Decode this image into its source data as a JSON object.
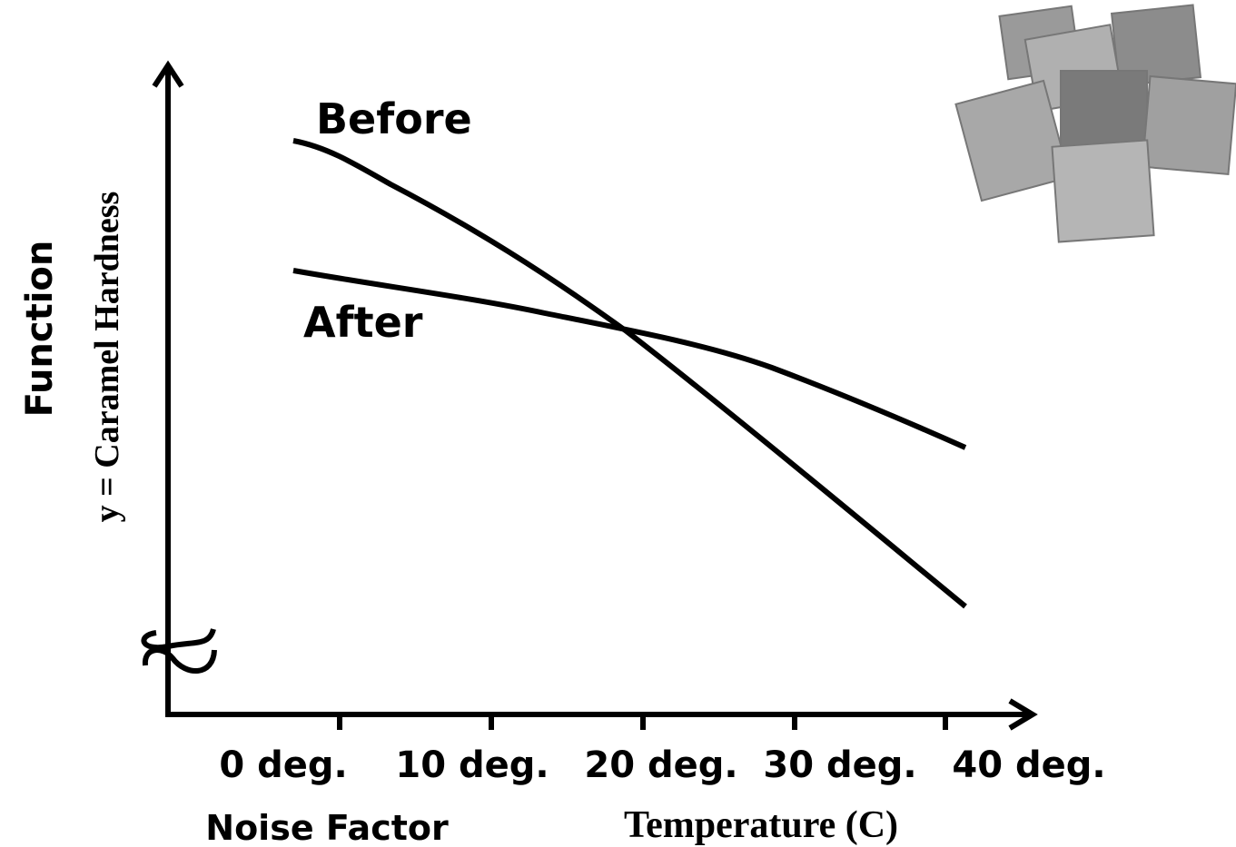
{
  "curves": {
    "before": "Before",
    "after": "After"
  },
  "y_axis": {
    "title": "Function",
    "subtitle": "y = Caramel Hardness"
  },
  "x_axis": {
    "ticks": [
      "0 deg.",
      "10 deg.",
      "20 deg.",
      "30 deg.",
      "40 deg."
    ],
    "title": "Noise Factor",
    "subtitle": "Temperature (C)"
  }
}
